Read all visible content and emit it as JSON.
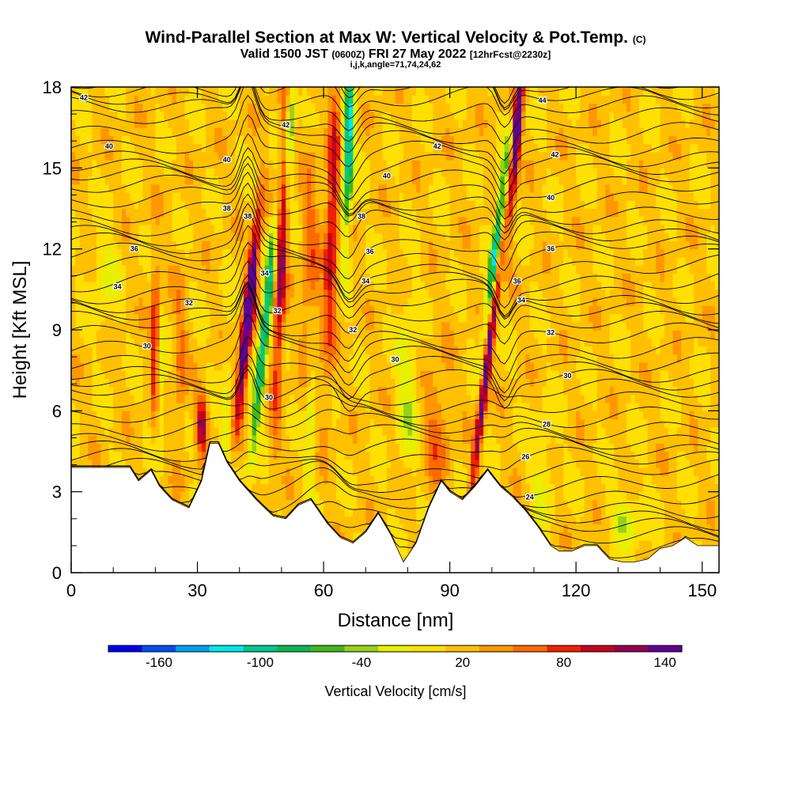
{
  "header": {
    "title": "Wind-Parallel Section at Max W: Vertical Velocity & Pot.Temp.",
    "title_tag": "(C)",
    "valid_prefix": "Valid 1500 JST",
    "valid_utc": "(0600Z)",
    "valid_date": "FRI 27 May 2022",
    "forecast_tag": "[12hrFcst@2230z]",
    "indices": "i,j,k,angle=71,74,24,62"
  },
  "chart_data": {
    "type": "heatmap",
    "xlabel": "Distance [nm]",
    "ylabel": "Height [Kft MSL]",
    "xlim": [
      0,
      154
    ],
    "ylim": [
      0,
      18
    ],
    "x_ticks": [
      "0",
      "30",
      "60",
      "90",
      "120",
      "150"
    ],
    "y_ticks": [
      "0",
      "3",
      "6",
      "9",
      "12",
      "15",
      "18"
    ],
    "colorbar": {
      "label": "Vertical Velocity [cm/s]",
      "tick_labels": [
        "-160",
        "-100",
        "-40",
        "20",
        "80",
        "140"
      ],
      "colors": [
        "#0000f0",
        "#0050f0",
        "#00a0f0",
        "#00e8e8",
        "#00c88c",
        "#10b450",
        "#40b81a",
        "#96d21a",
        "#e6f000",
        "#ffe000",
        "#ffc000",
        "#ff9800",
        "#ff6a00",
        "#f02000",
        "#c80020",
        "#960050",
        "#600090"
      ]
    },
    "downdrafts_nm": [
      21,
      46,
      57,
      66,
      101
    ],
    "updrafts_nm": [
      20,
      31,
      42,
      50,
      62,
      99,
      106
    ],
    "potential_temperature_labels": [
      {
        "text": "42",
        "x": 3,
        "y": 17.6
      },
      {
        "text": "42",
        "x": 51,
        "y": 16.6
      },
      {
        "text": "42",
        "x": 87,
        "y": 15.8
      },
      {
        "text": "42",
        "x": 115,
        "y": 15.5
      },
      {
        "text": "44",
        "x": 112,
        "y": 17.5
      },
      {
        "text": "40",
        "x": 9,
        "y": 15.8
      },
      {
        "text": "40",
        "x": 37,
        "y": 15.3
      },
      {
        "text": "40",
        "x": 75,
        "y": 14.7
      },
      {
        "text": "40",
        "x": 114,
        "y": 13.9
      },
      {
        "text": "38",
        "x": 37,
        "y": 13.5
      },
      {
        "text": "38",
        "x": 42,
        "y": 13.2
      },
      {
        "text": "38",
        "x": 69,
        "y": 13.2
      },
      {
        "text": "36",
        "x": 15,
        "y": 12.0
      },
      {
        "text": "36",
        "x": 71,
        "y": 11.9
      },
      {
        "text": "36",
        "x": 114,
        "y": 12.0
      },
      {
        "text": "36",
        "x": 106,
        "y": 10.8
      },
      {
        "text": "34",
        "x": 11,
        "y": 10.6
      },
      {
        "text": "34",
        "x": 46,
        "y": 11.1
      },
      {
        "text": "34",
        "x": 70,
        "y": 10.8
      },
      {
        "text": "34",
        "x": 107,
        "y": 10.1
      },
      {
        "text": "32",
        "x": 28,
        "y": 10.0
      },
      {
        "text": "32",
        "x": 49,
        "y": 9.7
      },
      {
        "text": "32",
        "x": 67,
        "y": 9.0
      },
      {
        "text": "32",
        "x": 114,
        "y": 8.9
      },
      {
        "text": "30",
        "x": 18,
        "y": 8.4
      },
      {
        "text": "30",
        "x": 77,
        "y": 7.9
      },
      {
        "text": "30",
        "x": 47,
        "y": 6.5
      },
      {
        "text": "30",
        "x": 118,
        "y": 7.3
      },
      {
        "text": "28",
        "x": 113,
        "y": 5.5
      },
      {
        "text": "26",
        "x": 108,
        "y": 4.3
      },
      {
        "text": "24",
        "x": 109,
        "y": 2.8
      }
    ]
  }
}
